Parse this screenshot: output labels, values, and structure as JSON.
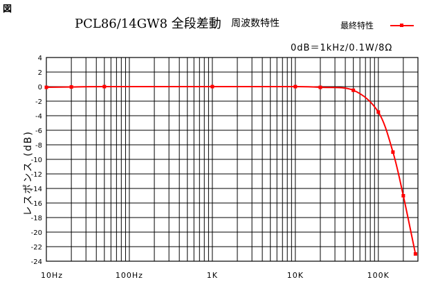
{
  "figure_label": "図",
  "title_main": "PCL86/14GW8 全段差動",
  "title_sub": "周波数特性",
  "condition": "0dB＝1kHz/0.1W/8Ω",
  "legend": {
    "entry": "最終特性",
    "color": "#ff0000"
  },
  "chart_data": {
    "type": "line",
    "xscale": "log",
    "xlim": [
      10,
      300000
    ],
    "ylim": [
      -24,
      4
    ],
    "ylabel": "レスポンス (dB)",
    "xlabel": "",
    "grid": true,
    "legend_position": "top-right",
    "ytick_step": 2,
    "xtick_labels": [
      {
        "value": 10,
        "label": "10Hz"
      },
      {
        "value": 100,
        "label": "100Hz"
      },
      {
        "value": 1000,
        "label": "1K"
      },
      {
        "value": 10000,
        "label": "10K"
      },
      {
        "value": 100000,
        "label": "100K"
      }
    ],
    "series": [
      {
        "name": "最終特性",
        "color": "#ff0000",
        "x": [
          10,
          20,
          50,
          1000,
          10000,
          20000,
          50000,
          100000,
          150000,
          200000,
          280000
        ],
        "y": [
          -0.1,
          -0.05,
          0,
          0,
          0,
          -0.1,
          -0.5,
          -3.5,
          -9,
          -15,
          -23
        ]
      }
    ]
  }
}
